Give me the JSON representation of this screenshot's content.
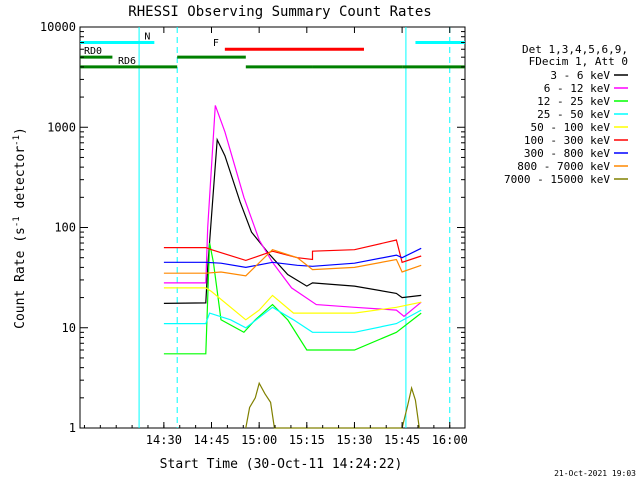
{
  "chart_data": {
    "type": "line",
    "title": "RHESSI Observing Summary Count Rates",
    "xlabel": "Start Time (30-Oct-11 14:24:22)",
    "ylabel": "Count Rate (s⁻¹ detector⁻¹)",
    "ylabel_parts": {
      "main": "Count Rate (s",
      "exp1": "-1",
      "mid": " detector",
      "exp2": "-1",
      "end": ")"
    },
    "yscale": "log",
    "ylim": [
      1,
      10000
    ],
    "xlim_minutes": [
      14.06,
      16.08
    ],
    "x_ticks": [
      {
        "label": "14:30",
        "hour": 14.5
      },
      {
        "label": "14:45",
        "hour": 14.75
      },
      {
        "label": "15:00",
        "hour": 15.0
      },
      {
        "label": "15:15",
        "hour": 15.25
      },
      {
        "label": "15:30",
        "hour": 15.5
      },
      {
        "label": "15:45",
        "hour": 15.75
      },
      {
        "label": "16:00",
        "hour": 16.0
      }
    ],
    "y_ticks": [
      {
        "label": "1",
        "value": 1
      },
      {
        "label": "10",
        "value": 10
      },
      {
        "label": "100",
        "value": 100
      },
      {
        "label": "1000",
        "value": 1000
      },
      {
        "label": "10000",
        "value": 10000
      }
    ],
    "legend": {
      "placement": "right",
      "header": [
        "Det 1,3,4,5,6,9,",
        "FDecim 1, Att 0"
      ],
      "entries": [
        {
          "name": "3 - 6 keV",
          "color": "#000000"
        },
        {
          "name": "6 - 12 keV",
          "color": "#ff00ff"
        },
        {
          "name": "12 - 25 keV",
          "color": "#00ff00"
        },
        {
          "name": "25 - 50 keV",
          "color": "#00ffff"
        },
        {
          "name": "50 - 100 keV",
          "color": "#ffff00"
        },
        {
          "name": "100 - 300 keV",
          "color": "#ff0000"
        },
        {
          "name": "300 - 800 keV",
          "color": "#0000ff"
        },
        {
          "name": "800 - 7000 keV",
          "color": "#ff8800"
        },
        {
          "name": "7000 - 15000 keV",
          "color": "#808000"
        }
      ]
    },
    "flags": {
      "night": {
        "label": "N",
        "color": "#00ffff",
        "value": 7000,
        "segments": [
          [
            14.06,
            14.45
          ],
          [
            15.82,
            16.08
          ]
        ]
      },
      "flare": {
        "label": "F",
        "color": "#ff0000",
        "value": 6000,
        "segments": [
          [
            14.82,
            15.55
          ]
        ]
      },
      "rd0": {
        "label": "RD0",
        "color": "#008000",
        "value": 5000,
        "segments": [
          [
            14.06,
            14.23
          ],
          [
            14.57,
            14.93
          ]
        ]
      },
      "rd6": {
        "label": "RD6",
        "color": "#008000",
        "value": 4000,
        "segments": [
          [
            14.06,
            14.57
          ],
          [
            14.93,
            15.28
          ],
          [
            15.28,
            15.75
          ],
          [
            15.75,
            16.08
          ]
        ]
      }
    },
    "night_lines": [
      {
        "hour": 14.37,
        "style": "solid"
      },
      {
        "hour": 14.57,
        "style": "dashed"
      },
      {
        "hour": 15.77,
        "style": "solid"
      },
      {
        "hour": 16.0,
        "style": "dashed"
      }
    ],
    "series": [
      {
        "name": "3 - 6 keV",
        "color": "#000000",
        "points": [
          [
            14.5,
            17.5
          ],
          [
            14.72,
            17.7
          ],
          [
            14.73,
            40
          ],
          [
            14.78,
            750
          ],
          [
            14.82,
            520
          ],
          [
            14.9,
            180
          ],
          [
            14.96,
            90
          ],
          [
            15.05,
            55
          ],
          [
            15.15,
            34
          ],
          [
            15.25,
            26
          ],
          [
            15.28,
            28
          ],
          [
            15.5,
            26
          ],
          [
            15.72,
            22
          ],
          [
            15.75,
            20
          ],
          [
            15.85,
            21
          ]
        ]
      },
      {
        "name": "6 - 12 keV",
        "color": "#ff00ff",
        "points": [
          [
            14.5,
            28
          ],
          [
            14.72,
            28
          ],
          [
            14.73,
            100
          ],
          [
            14.77,
            1650
          ],
          [
            14.82,
            900
          ],
          [
            14.92,
            200
          ],
          [
            15.0,
            75
          ],
          [
            15.07,
            45
          ],
          [
            15.17,
            25
          ],
          [
            15.3,
            17
          ],
          [
            15.5,
            16
          ],
          [
            15.72,
            15
          ],
          [
            15.76,
            13
          ],
          [
            15.85,
            18
          ]
        ]
      },
      {
        "name": "12 - 25 keV",
        "color": "#00ff00",
        "points": [
          [
            14.5,
            5.5
          ],
          [
            14.72,
            5.5
          ],
          [
            14.74,
            70
          ],
          [
            14.76,
            45
          ],
          [
            14.8,
            12
          ],
          [
            14.92,
            9
          ],
          [
            14.98,
            12
          ],
          [
            15.07,
            17
          ],
          [
            15.15,
            12
          ],
          [
            15.25,
            6
          ],
          [
            15.28,
            6
          ],
          [
            15.5,
            6
          ],
          [
            15.72,
            9
          ],
          [
            15.85,
            14
          ]
        ]
      },
      {
        "name": "25 - 50 keV",
        "color": "#00ffff",
        "points": [
          [
            14.5,
            11
          ],
          [
            14.72,
            11
          ],
          [
            14.74,
            14
          ],
          [
            14.85,
            12
          ],
          [
            14.93,
            10
          ],
          [
            15.07,
            16
          ],
          [
            15.18,
            12
          ],
          [
            15.28,
            9
          ],
          [
            15.5,
            9
          ],
          [
            15.72,
            11
          ],
          [
            15.85,
            15
          ]
        ]
      },
      {
        "name": "50 - 100 keV",
        "color": "#ffff00",
        "points": [
          [
            14.5,
            25
          ],
          [
            14.72,
            25
          ],
          [
            14.75,
            23
          ],
          [
            14.93,
            12
          ],
          [
            15.0,
            15
          ],
          [
            15.07,
            21
          ],
          [
            15.18,
            14
          ],
          [
            15.28,
            14
          ],
          [
            15.5,
            14
          ],
          [
            15.72,
            16
          ],
          [
            15.85,
            18
          ]
        ]
      },
      {
        "name": "100 - 300 keV",
        "color": "#ff0000",
        "points": [
          [
            14.5,
            63
          ],
          [
            14.72,
            63
          ],
          [
            14.75,
            60
          ],
          [
            14.93,
            47
          ],
          [
            15.07,
            58
          ],
          [
            15.2,
            50
          ],
          [
            15.28,
            48
          ],
          [
            15.28,
            58
          ],
          [
            15.5,
            60
          ],
          [
            15.72,
            75
          ],
          [
            15.75,
            45
          ],
          [
            15.85,
            52
          ]
        ]
      },
      {
        "name": "300 - 800 keV",
        "color": "#0000ff",
        "points": [
          [
            14.5,
            45
          ],
          [
            14.72,
            45
          ],
          [
            14.8,
            44
          ],
          [
            14.93,
            40
          ],
          [
            15.07,
            45
          ],
          [
            15.2,
            42
          ],
          [
            15.28,
            41
          ],
          [
            15.5,
            44
          ],
          [
            15.72,
            53
          ],
          [
            15.75,
            50
          ],
          [
            15.85,
            62
          ]
        ]
      },
      {
        "name": "800 - 7000 keV",
        "color": "#ff8800",
        "points": [
          [
            14.5,
            35
          ],
          [
            14.72,
            35
          ],
          [
            14.8,
            36
          ],
          [
            14.93,
            33
          ],
          [
            15.07,
            60
          ],
          [
            15.2,
            50
          ],
          [
            15.28,
            38
          ],
          [
            15.5,
            40
          ],
          [
            15.72,
            48
          ],
          [
            15.75,
            36
          ],
          [
            15.85,
            42
          ]
        ]
      },
      {
        "name": "7000 - 15000 keV",
        "color": "#808000",
        "points": [
          [
            14.93,
            1.0
          ],
          [
            14.95,
            1.6
          ],
          [
            14.98,
            2.0
          ],
          [
            15.0,
            2.8
          ],
          [
            15.03,
            2.2
          ],
          [
            15.06,
            1.8
          ],
          [
            15.08,
            1.0
          ],
          [
            15.75,
            1.0
          ],
          [
            15.78,
            1.7
          ],
          [
            15.8,
            2.5
          ],
          [
            15.82,
            1.9
          ],
          [
            15.84,
            1.0
          ]
        ]
      }
    ]
  },
  "footer": {
    "date_stamp": "21-Oct-2021 19:03"
  }
}
